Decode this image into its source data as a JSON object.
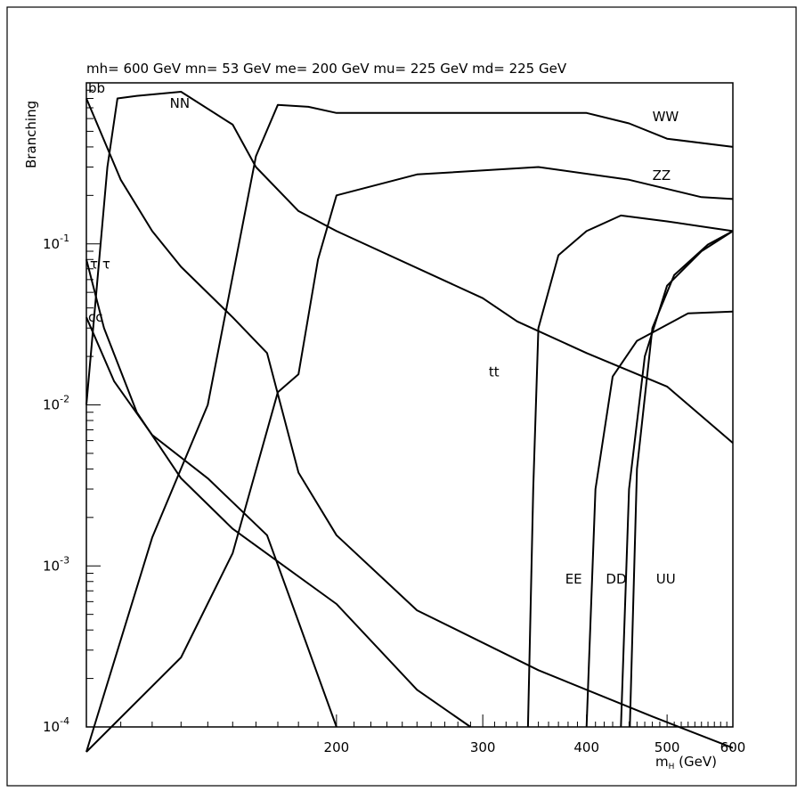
{
  "chart_data": {
    "type": "line",
    "title": "mh= 600 GeV mn= 53 GeV me= 200 GeV mu= 225 GeV md= 225 GeV",
    "ylabel": "Branching",
    "xlabel_main": "m",
    "xlabel_sub": "H",
    "xlabel_unit": " (GeV)",
    "x_scale": "log",
    "y_scale": "log",
    "xlim": [
      100,
      600
    ],
    "ylim": [
      0.0001,
      1
    ],
    "x_ticks": [
      {
        "value": 200,
        "label": "200"
      },
      {
        "value": 300,
        "label": "300"
      },
      {
        "value": 400,
        "label": "400"
      },
      {
        "value": 500,
        "label": "500"
      },
      {
        "value": 600,
        "label": "600"
      }
    ],
    "y_ticks": [
      {
        "value": 0.1,
        "base": "10",
        "exp": "-1"
      },
      {
        "value": 0.01,
        "base": "10",
        "exp": "-2"
      },
      {
        "value": 0.001,
        "base": "10",
        "exp": "-3"
      },
      {
        "value": 0.0001,
        "base": "10",
        "exp": "-4"
      }
    ],
    "series": [
      {
        "name": "bb",
        "points": [
          [
            100,
            0.8
          ],
          [
            110,
            0.25
          ],
          [
            120,
            0.12
          ],
          [
            130,
            0.072
          ],
          [
            150,
            0.035
          ],
          [
            165,
            0.021
          ],
          [
            180,
            0.0038
          ],
          [
            200,
            0.00155
          ],
          [
            250,
            0.00053
          ],
          [
            350,
            0.000225
          ],
          [
            480,
            0.000116
          ],
          [
            600,
            7.4e-05
          ]
        ]
      },
      {
        "name": "NN",
        "points": [
          [
            100,
            0.01
          ],
          [
            106,
            0.3
          ],
          [
            109,
            0.8
          ],
          [
            115,
            0.83
          ],
          [
            130,
            0.88
          ],
          [
            150,
            0.55
          ],
          [
            160,
            0.3
          ],
          [
            180,
            0.16
          ],
          [
            200,
            0.12
          ],
          [
            300,
            0.046
          ],
          [
            330,
            0.033
          ],
          [
            400,
            0.021
          ],
          [
            500,
            0.013
          ],
          [
            600,
            0.0058
          ]
        ]
      },
      {
        "name": "WW",
        "points": [
          [
            100,
            7e-05
          ],
          [
            120,
            0.0015
          ],
          [
            140,
            0.01
          ],
          [
            160,
            0.35
          ],
          [
            170,
            0.73
          ],
          [
            185,
            0.71
          ],
          [
            200,
            0.65
          ],
          [
            300,
            0.65
          ],
          [
            400,
            0.65
          ],
          [
            450,
            0.56
          ],
          [
            500,
            0.45
          ],
          [
            600,
            0.4
          ]
        ]
      },
      {
        "name": "ZZ",
        "points": [
          [
            100,
            7e-05
          ],
          [
            130,
            0.00027
          ],
          [
            150,
            0.0012
          ],
          [
            170,
            0.012
          ],
          [
            180,
            0.0155
          ],
          [
            190,
            0.08
          ],
          [
            200,
            0.2
          ],
          [
            250,
            0.27
          ],
          [
            350,
            0.3
          ],
          [
            450,
            0.25
          ],
          [
            550,
            0.195
          ],
          [
            600,
            0.19
          ]
        ]
      },
      {
        "name": "tt",
        "points": [
          [
            340,
            0.0001
          ],
          [
            345,
            0.003
          ],
          [
            350,
            0.03
          ],
          [
            370,
            0.085
          ],
          [
            400,
            0.12
          ],
          [
            440,
            0.15
          ],
          [
            500,
            0.138
          ],
          [
            600,
            0.12
          ]
        ]
      },
      {
        "name": "EE",
        "points": [
          [
            400,
            0.0001
          ],
          [
            410,
            0.003
          ],
          [
            430,
            0.015
          ],
          [
            460,
            0.025
          ],
          [
            530,
            0.037
          ],
          [
            600,
            0.038
          ]
        ]
      },
      {
        "name": "DD",
        "points": [
          [
            440,
            0.0001
          ],
          [
            450,
            0.003
          ],
          [
            470,
            0.02
          ],
          [
            500,
            0.055
          ],
          [
            550,
            0.09
          ],
          [
            600,
            0.12
          ]
        ]
      },
      {
        "name": "UU",
        "points": [
          [
            451,
            0.0001
          ],
          [
            460,
            0.004
          ],
          [
            480,
            0.03
          ],
          [
            510,
            0.064
          ],
          [
            560,
            0.099
          ],
          [
            600,
            0.12
          ]
        ]
      },
      {
        "name": "cc",
        "points": [
          [
            100,
            0.035
          ],
          [
            108,
            0.014
          ],
          [
            120,
            0.0065
          ],
          [
            140,
            0.0035
          ],
          [
            165,
            0.00155
          ],
          [
            180,
            0.00045
          ],
          [
            200,
            0.0001
          ]
        ]
      },
      {
        "name": "tau tau",
        "points": [
          [
            100,
            0.08
          ],
          [
            105,
            0.03
          ],
          [
            115,
            0.009
          ],
          [
            130,
            0.0035
          ],
          [
            150,
            0.0017
          ],
          [
            200,
            0.00058
          ],
          [
            250,
            0.00017
          ],
          [
            290,
            0.0001
          ]
        ]
      }
    ],
    "labels": [
      {
        "text": "bb",
        "x": 100.5,
        "y": 0.87
      },
      {
        "text": "NN",
        "x": 126,
        "y": 0.7
      },
      {
        "text": "WW",
        "x": 480,
        "y": 0.58
      },
      {
        "text": "ZZ",
        "x": 480,
        "y": 0.25
      },
      {
        "text": "τ τ",
        "x": 101,
        "y": 0.07
      },
      {
        "text": "cc",
        "x": 100.5,
        "y": 0.033
      },
      {
        "text": "tt",
        "x": 305,
        "y": 0.015
      },
      {
        "text": "EE",
        "x": 377,
        "y": 0.00078
      },
      {
        "text": "DD",
        "x": 422,
        "y": 0.00078
      },
      {
        "text": "UU",
        "x": 485,
        "y": 0.00078
      }
    ],
    "grid": false,
    "legend": "none"
  }
}
